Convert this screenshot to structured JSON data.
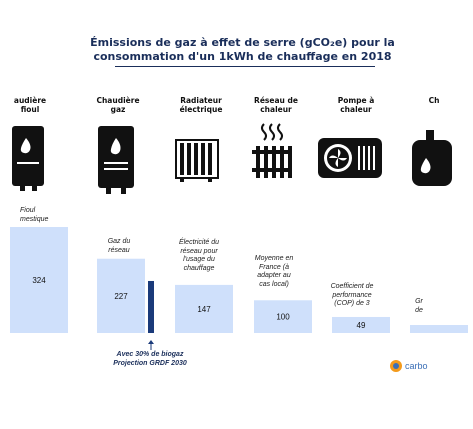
{
  "title": {
    "line1": "Émissions de gaz à effet de serre (gCO₂e) pour la",
    "line2": "consommation d'un 1kWh de chauffage en 2018"
  },
  "columns": [
    {
      "heading": "audière\nfioul",
      "note": "Fioul\nmestique",
      "icon": "oil-boiler-icon"
    },
    {
      "heading": "Chaudière\ngaz",
      "note": "Gaz du\nréseau",
      "icon": "gas-boiler-icon"
    },
    {
      "heading": "Radiateur\nélectrique",
      "note": "Électricité du\nréseau pour\nl'usage du\nchauffage",
      "icon": "radiator-icon"
    },
    {
      "heading": "Réseau de\nchaleur",
      "note": "Moyenne en\nFrance (à\nadapter au\ncas local)",
      "icon": "heat-network-icon"
    },
    {
      "heading": "Pompe à\nchaleur",
      "note": "Coefficient de\nperformance\n(COP) de 3",
      "icon": "heat-pump-icon"
    },
    {
      "heading": "Ch\n",
      "note": "Gr\nde",
      "icon": "wood-boiler-icon"
    }
  ],
  "projection": {
    "line1": "Avec 30% de biogaz",
    "line2": "Projection GRDF 2030"
  },
  "logo_text": "carbo",
  "colors": {
    "bar": "#cfe0fb",
    "projection_bar": "#1a3a7a",
    "title": "#1a2e5a",
    "icon": "#111111"
  },
  "chart_data": {
    "type": "bar",
    "title": "Émissions de gaz à effet de serre (gCO₂e) pour la consommation d'un 1kWh de chauffage en 2018",
    "categories": [
      "Chaudière fioul",
      "Chaudière gaz",
      "Radiateur électrique",
      "Réseau de chaleur",
      "Pompe à chaleur",
      "Ch"
    ],
    "values": [
      324,
      227,
      147,
      100,
      49,
      null
    ],
    "value_labels": [
      "324",
      "227",
      "147",
      "100",
      "49",
      ""
    ],
    "projection": {
      "category": "Chaudière gaz",
      "value": 159
    },
    "ylim": [
      0,
      340
    ],
    "grid": false,
    "legend": "none"
  }
}
